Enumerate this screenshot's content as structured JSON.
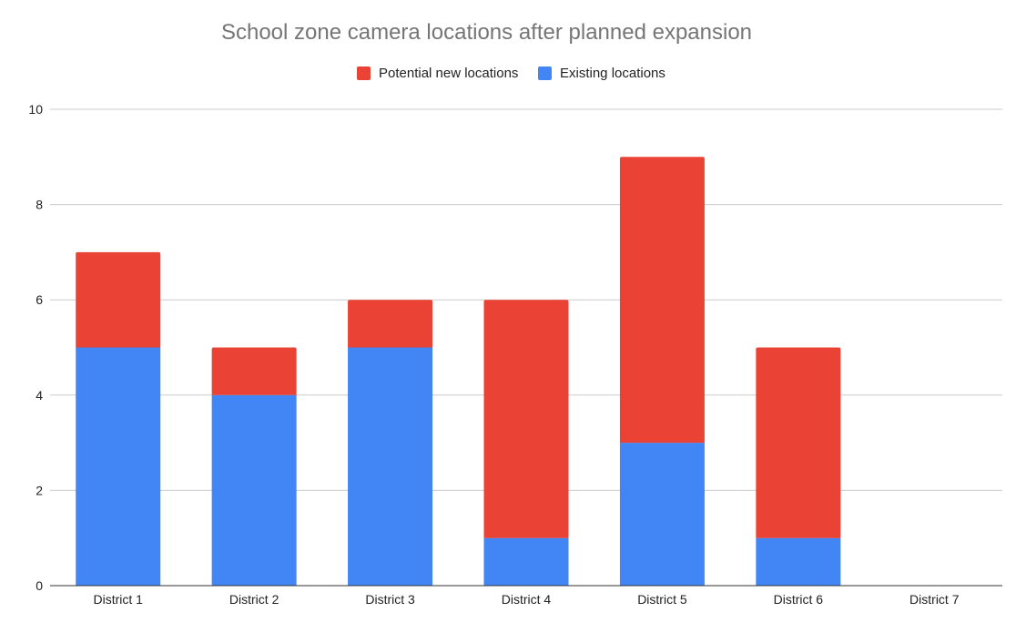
{
  "chart_data": {
    "type": "bar",
    "stacked": true,
    "title": "School zone camera locations after planned expansion",
    "xlabel": "",
    "ylabel": "",
    "ylim": [
      0,
      10
    ],
    "yticks": [
      "0",
      "2",
      "4",
      "6",
      "8",
      "10"
    ],
    "categories": [
      "District 1",
      "District 2",
      "District 3",
      "District 4",
      "District 5",
      "District 6",
      "District 7"
    ],
    "series": [
      {
        "name": "Existing locations",
        "color": "#4285f4",
        "values": [
          5,
          4,
          5,
          1,
          3,
          1,
          0
        ]
      },
      {
        "name": "Potential new locations",
        "color": "#ea4335",
        "values": [
          2,
          1,
          1,
          5,
          6,
          4,
          0
        ]
      }
    ],
    "legend": {
      "placement": "top",
      "order": [
        "Potential new locations",
        "Existing locations"
      ]
    },
    "grid": true
  }
}
